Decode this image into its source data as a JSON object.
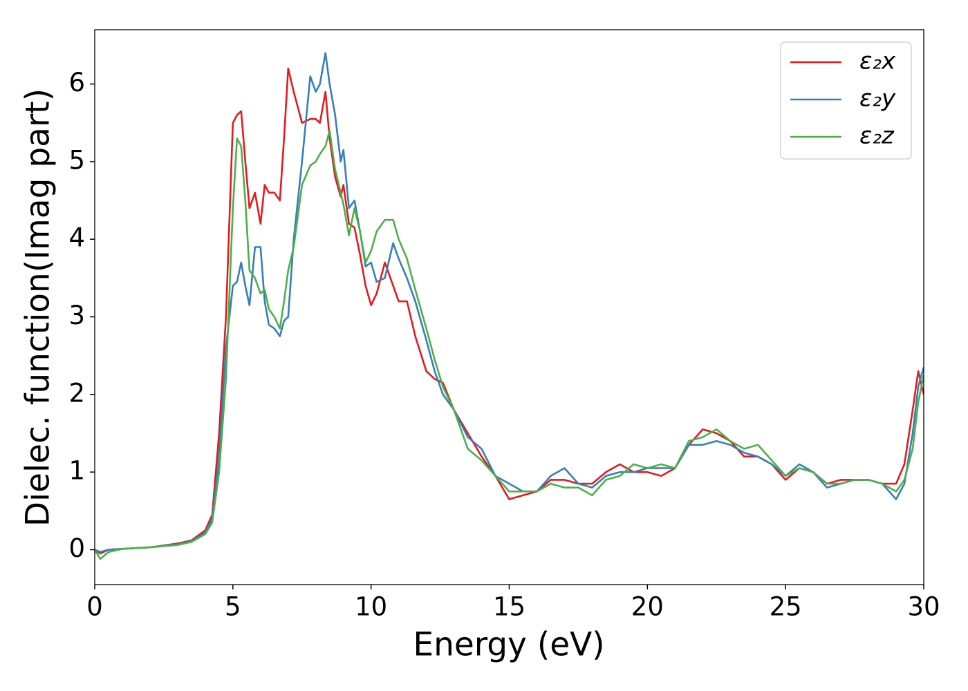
{
  "chart_data": {
    "type": "line",
    "xlabel": "Energy (eV)",
    "ylabel": "Dielec. function(Imag part)",
    "x": [
      0,
      0.2,
      0.5,
      1,
      2,
      3,
      3.5,
      4,
      4.25,
      4.5,
      4.75,
      5,
      5.15,
      5.3,
      5.45,
      5.6,
      5.8,
      6,
      6.15,
      6.3,
      6.5,
      6.7,
      6.85,
      7,
      7.2,
      7.5,
      7.8,
      8,
      8.15,
      8.35,
      8.5,
      8.7,
      8.9,
      9,
      9.2,
      9.4,
      9.6,
      9.8,
      10,
      10.2,
      10.5,
      10.8,
      11,
      11.3,
      11.6,
      12,
      12.3,
      12.6,
      13,
      13.5,
      14,
      14.5,
      15,
      15.5,
      16,
      16.5,
      17,
      17.5,
      18,
      18.5,
      19,
      19.5,
      20,
      20.5,
      21,
      21.5,
      22,
      22.5,
      23,
      23.5,
      24,
      24.5,
      25,
      25.5,
      26,
      26.5,
      27,
      27.5,
      28,
      28.5,
      29,
      29.3,
      29.6,
      29.8,
      30
    ],
    "series": [
      {
        "name": "ε₂x",
        "color": "#e41a1c",
        "values": [
          0,
          -0.05,
          0,
          0.01,
          0.03,
          0.08,
          0.12,
          0.25,
          0.45,
          1.5,
          3.0,
          5.5,
          5.6,
          5.65,
          5.0,
          4.4,
          4.6,
          4.2,
          4.7,
          4.6,
          4.6,
          4.5,
          5.3,
          6.2,
          5.9,
          5.5,
          5.55,
          5.55,
          5.5,
          5.9,
          5.3,
          4.8,
          4.55,
          4.7,
          4.2,
          4.15,
          3.8,
          3.4,
          3.15,
          3.3,
          3.7,
          3.4,
          3.2,
          3.2,
          2.75,
          2.3,
          2.2,
          2.15,
          1.8,
          1.5,
          1.2,
          0.95,
          0.65,
          0.7,
          0.75,
          0.9,
          0.9,
          0.85,
          0.85,
          1.0,
          1.1,
          1.0,
          1.0,
          0.95,
          1.05,
          1.35,
          1.55,
          1.5,
          1.4,
          1.2,
          1.2,
          1.1,
          0.9,
          1.05,
          1.0,
          0.85,
          0.9,
          0.9,
          0.9,
          0.85,
          0.85,
          1.1,
          1.8,
          2.3,
          2.0
        ]
      },
      {
        "name": "ε₂y",
        "color": "#377eb8",
        "values": [
          0,
          -0.03,
          0,
          0.01,
          0.03,
          0.07,
          0.11,
          0.22,
          0.4,
          1.2,
          2.6,
          3.4,
          3.45,
          3.7,
          3.4,
          3.15,
          3.9,
          3.9,
          3.2,
          2.9,
          2.85,
          2.75,
          2.95,
          3.0,
          4.0,
          5.0,
          6.1,
          5.9,
          6.0,
          6.4,
          6.0,
          5.6,
          5.0,
          5.15,
          4.4,
          4.5,
          4.1,
          3.65,
          3.7,
          3.45,
          3.5,
          3.95,
          3.75,
          3.5,
          3.2,
          2.7,
          2.3,
          2.0,
          1.8,
          1.45,
          1.3,
          0.95,
          0.85,
          0.75,
          0.75,
          0.95,
          1.05,
          0.85,
          0.8,
          0.95,
          1.0,
          1.0,
          1.05,
          1.05,
          1.05,
          1.35,
          1.35,
          1.4,
          1.35,
          1.25,
          1.2,
          1.1,
          0.95,
          1.1,
          1.0,
          0.8,
          0.85,
          0.9,
          0.9,
          0.85,
          0.65,
          0.85,
          1.5,
          2.1,
          2.35
        ]
      },
      {
        "name": "ε₂z",
        "color": "#4daf4a",
        "values": [
          0,
          -0.12,
          -0.03,
          0.01,
          0.03,
          0.06,
          0.1,
          0.2,
          0.35,
          1.0,
          2.2,
          4.4,
          5.3,
          5.2,
          4.5,
          3.6,
          3.5,
          3.3,
          3.35,
          3.1,
          3.0,
          2.85,
          3.2,
          3.6,
          3.9,
          4.7,
          4.95,
          5.0,
          5.1,
          5.2,
          5.4,
          4.9,
          4.6,
          4.45,
          4.05,
          4.4,
          4.1,
          3.7,
          3.85,
          4.1,
          4.25,
          4.25,
          4.0,
          3.75,
          3.35,
          2.85,
          2.45,
          2.1,
          1.8,
          1.3,
          1.15,
          0.95,
          0.75,
          0.75,
          0.75,
          0.85,
          0.8,
          0.8,
          0.7,
          0.9,
          0.95,
          1.1,
          1.05,
          1.1,
          1.05,
          1.4,
          1.45,
          1.55,
          1.4,
          1.3,
          1.35,
          1.15,
          0.95,
          1.05,
          1.0,
          0.85,
          0.85,
          0.9,
          0.9,
          0.85,
          0.75,
          0.9,
          1.3,
          1.9,
          2.25
        ]
      }
    ],
    "xlim": [
      0,
      30
    ],
    "xticks": [
      0,
      5,
      10,
      15,
      20,
      25,
      30
    ],
    "ylim": [
      -0.45,
      6.7
    ],
    "yticks": [
      0,
      1,
      2,
      3,
      4,
      5,
      6
    ],
    "legend": "upper right"
  }
}
